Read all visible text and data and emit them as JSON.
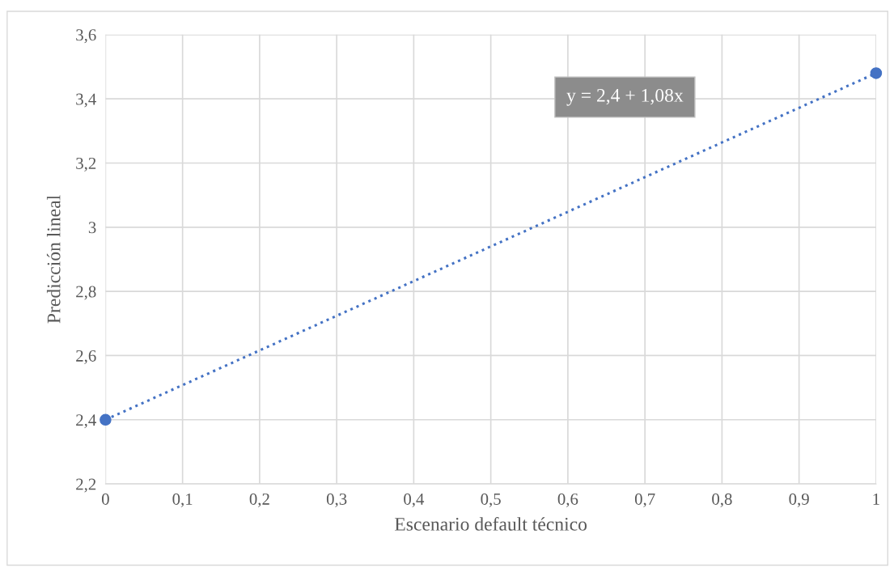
{
  "chart_data": {
    "type": "scatter",
    "xlabel": "Escenario default técnico",
    "ylabel": "Predicción lineal",
    "x": [
      0,
      1
    ],
    "series": [
      {
        "color": "#4472c4",
        "marker": "circle",
        "values": [
          2.4,
          3.48
        ]
      },
      {
        "type": "line",
        "color": "#4472c4",
        "line_style": "dotted",
        "marker": "none",
        "x": [
          0,
          1
        ],
        "values": [
          2.4,
          3.48
        ]
      }
    ],
    "annotations": [
      "y = 2,4 + 1,08x"
    ],
    "xlim": [
      0,
      1
    ],
    "xticks": [
      0,
      {
        "value": 0.1,
        "label": "0,1"
      },
      {
        "value": 0.2,
        "label": "0,2"
      },
      {
        "value": 0.3,
        "label": "0,3"
      },
      {
        "value": 0.4,
        "label": "0,4"
      },
      {
        "value": 0.5,
        "label": "0,5"
      },
      {
        "value": 0.6,
        "label": "0,6"
      },
      {
        "value": 0.7,
        "label": "0,7"
      },
      {
        "value": 0.8,
        "label": "0,8"
      },
      {
        "value": 0.9,
        "label": "0,9"
      },
      1
    ],
    "ylim": [
      2.2,
      3.6
    ],
    "yticks": [
      {
        "value": 2.2,
        "label": "2,2"
      },
      {
        "value": 2.4,
        "label": "2,4"
      },
      {
        "value": 2.6,
        "label": "2,6"
      },
      {
        "value": 2.8,
        "label": "2,8"
      },
      3,
      {
        "value": 3.2,
        "label": "3,2"
      },
      {
        "value": 3.4,
        "label": "3,4"
      },
      {
        "value": 3.6,
        "label": "3,6"
      }
    ],
    "grid": true,
    "legend": false
  }
}
